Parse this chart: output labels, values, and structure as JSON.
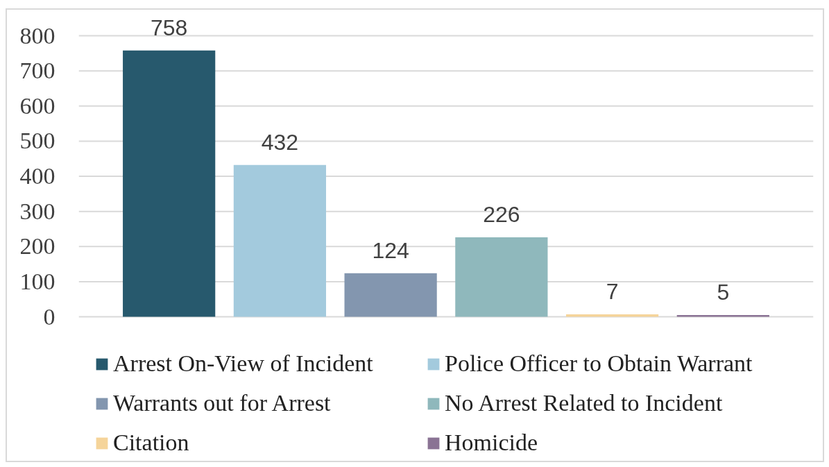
{
  "chart_data": {
    "type": "bar",
    "categories": [
      null
    ],
    "series": [
      {
        "name": "Arrest On-View of Incident",
        "color": "#27596d",
        "values": [
          758
        ]
      },
      {
        "name": "Police Officer to Obtain Warrant",
        "color": "#a3cadd",
        "values": [
          432
        ]
      },
      {
        "name": "Warrants out for Arrest",
        "color": "#8396af",
        "values": [
          124
        ]
      },
      {
        "name": "No Arrest Related to Incident",
        "color": "#8fb8bc",
        "values": [
          226
        ]
      },
      {
        "name": "Citation",
        "color": "#f5d49a",
        "values": [
          7
        ]
      },
      {
        "name": "Homicide",
        "color": "#8a7394",
        "values": [
          5
        ]
      }
    ],
    "ylim": [
      0,
      800
    ],
    "yticks": [
      0,
      100,
      200,
      300,
      400,
      500,
      600,
      700,
      800
    ],
    "grid": "y",
    "legend": "bottom",
    "tick_labels": "y",
    "data_labels": true
  }
}
